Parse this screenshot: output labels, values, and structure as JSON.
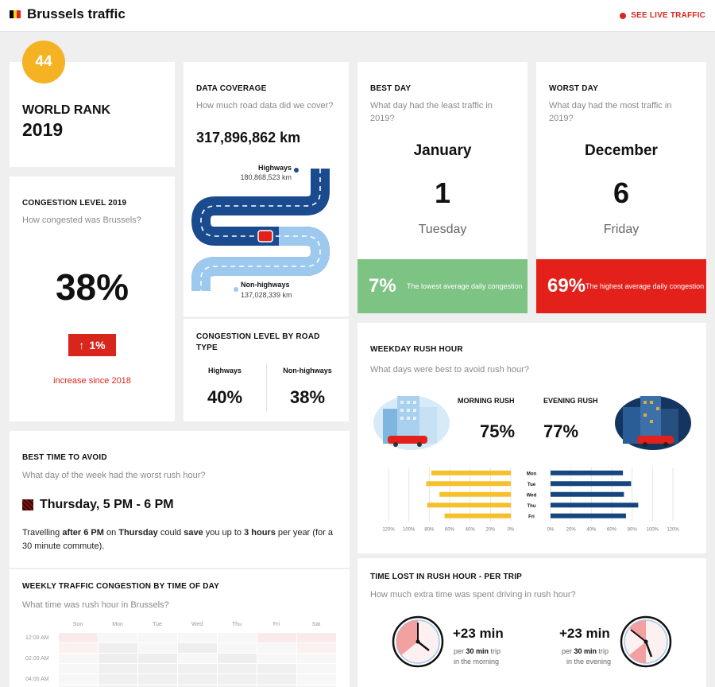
{
  "header": {
    "title": "Brussels traffic",
    "live_link": "SEE LIVE TRAFFIC",
    "flag_colors": [
      "#000000",
      "#f5d21a",
      "#e3211a"
    ]
  },
  "rank": {
    "badge": "44",
    "title_line1": "WORLD RANK",
    "title_line2": "2019"
  },
  "congestion": {
    "heading": "CONGESTION LEVEL 2019",
    "question": "How congested was Brussels?",
    "value": "38%",
    "change_arrow": "↑",
    "change": "1%",
    "change_note": "increase since 2018"
  },
  "coverage": {
    "heading": "DATA COVERAGE",
    "question": "How much road data did we cover?",
    "total": "317,896,862 km",
    "highways_label": "Highways",
    "highways_value": "180,868,523 km",
    "nonhighways_label": "Non-highways",
    "nonhighways_value": "137,028,339 km"
  },
  "road_type": {
    "heading": "CONGESTION LEVEL BY ROAD TYPE",
    "highways_label": "Highways",
    "highways_value": "40%",
    "nonhighways_label": "Non-highways",
    "nonhighways_value": "38%"
  },
  "best_day": {
    "heading": "BEST DAY",
    "question": "What day had the least traffic in 2019?",
    "month": "January",
    "day": "1",
    "weekday": "Tuesday",
    "pct": "7%",
    "note": "The lowest average daily congestion",
    "color": "#7dc383"
  },
  "worst_day": {
    "heading": "WORST DAY",
    "question": "What day had the most traffic in 2019?",
    "month": "December",
    "day": "6",
    "weekday": "Friday",
    "pct": "69%",
    "note": "The highest average daily congestion",
    "color": "#e3211a"
  },
  "rush_hour": {
    "heading": "WEEKDAY RUSH HOUR",
    "question": "What days were best to avoid rush hour?",
    "morning_label": "MORNING RUSH",
    "morning_value": "75%",
    "evening_label": "EVENING RUSH",
    "evening_value": "77%"
  },
  "chart_data": {
    "type": "bar",
    "categories": [
      "Mon",
      "Tue",
      "Wed",
      "Thu",
      "Fri"
    ],
    "series": [
      {
        "name": "MORNING RUSH",
        "values": [
          78,
          83,
          70,
          82,
          65
        ],
        "color": "#f5c02a"
      },
      {
        "name": "EVENING RUSH",
        "values": [
          71,
          79,
          72,
          86,
          74
        ],
        "color": "#15467f"
      }
    ],
    "xlim": [
      0,
      120
    ],
    "tick_labels": [
      "120%",
      "100%",
      "80%",
      "60%",
      "40%",
      "20%",
      "0%"
    ]
  },
  "best_time": {
    "heading": "BEST TIME TO AVOID",
    "question": "What day of the week had the worst rush hour?",
    "value": "Thursday, 5 PM - 6 PM",
    "desc_1": "Travelling ",
    "desc_2": "after 6 PM",
    "desc_3": " on ",
    "desc_4": "Thursday",
    "desc_5": " could ",
    "desc_6": "save",
    "desc_7": " you up to ",
    "desc_8": "3 hours",
    "desc_9": " per year (for a 30 minute commute)."
  },
  "weekly": {
    "heading": "WEEKLY TRAFFIC CONGESTION BY TIME OF DAY",
    "question": "What time was rush hour in Brussels?",
    "days": [
      "Sun",
      "Mon",
      "Tue",
      "Wed",
      "Thu",
      "Fri",
      "Sat"
    ],
    "hours": [
      "12:00 AM",
      "02:00 AM",
      "04:00 AM"
    ]
  },
  "time_lost": {
    "heading": "TIME LOST IN RUSH HOUR - PER TRIP",
    "question": "How much extra time was spent driving in rush hour?",
    "morning_value": "+23 min",
    "morning_l1": "per ",
    "morning_l1b": "30 min",
    "morning_l1c": " trip",
    "morning_l2": "in the morning",
    "evening_value": "+23 min",
    "evening_l1": "per ",
    "evening_l1b": "30 min",
    "evening_l1c": " trip",
    "evening_l2": "in the evening"
  }
}
